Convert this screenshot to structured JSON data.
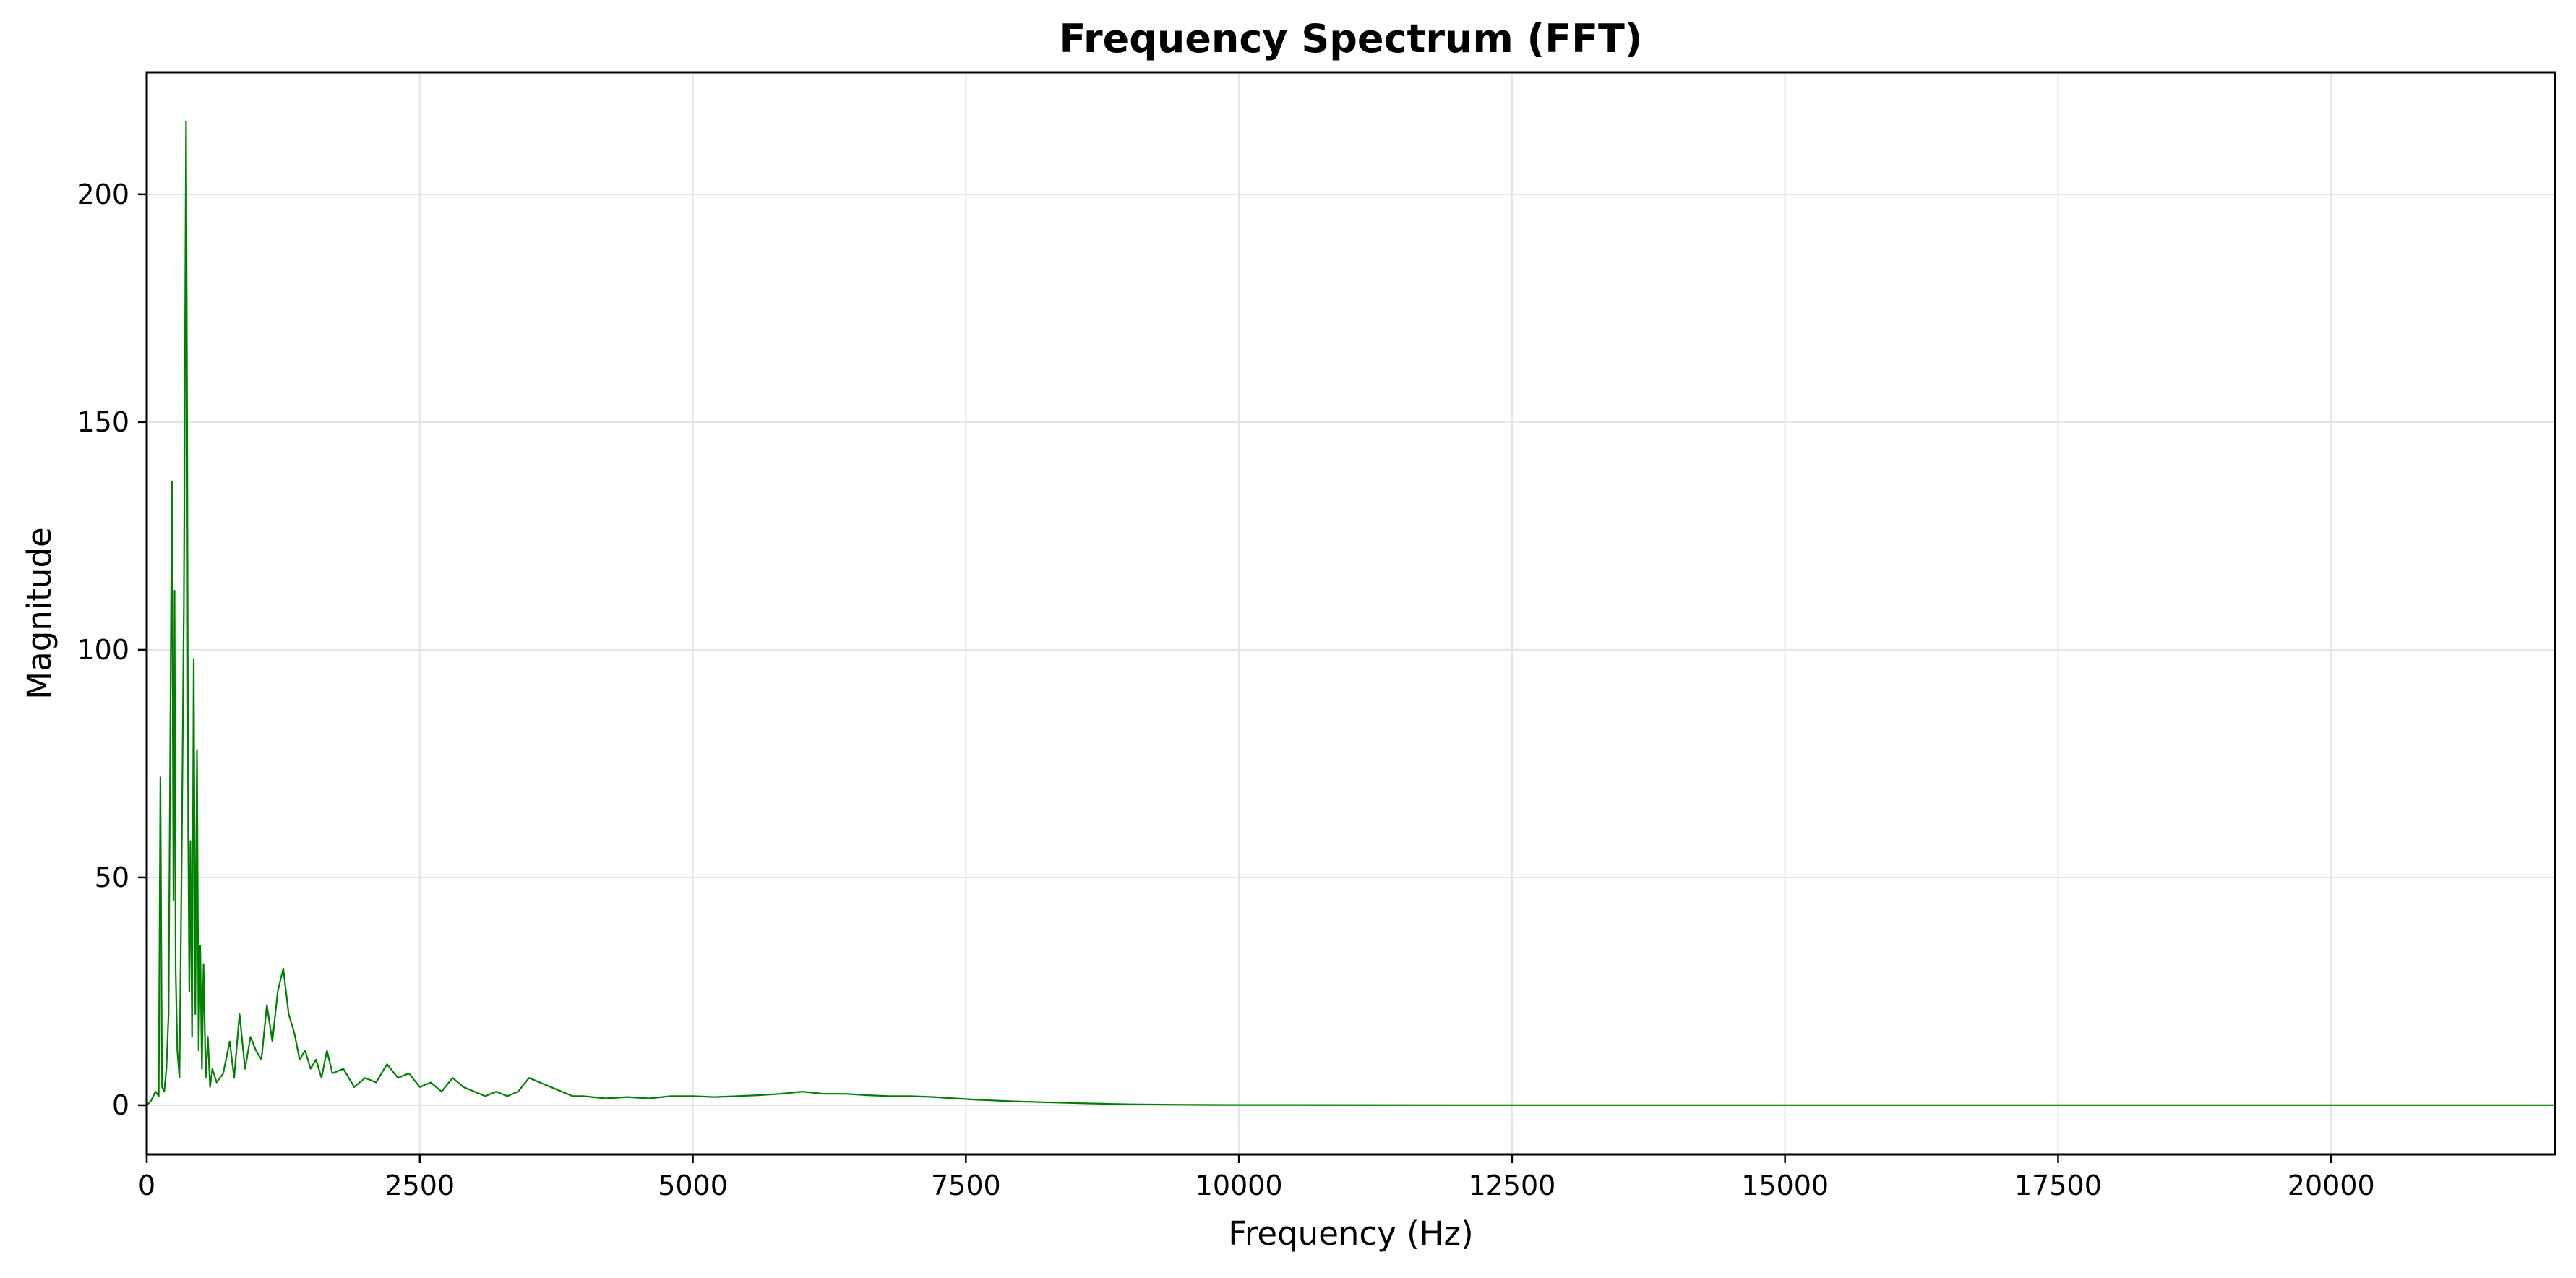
{
  "chart_data": {
    "type": "line",
    "title": "Frequency Spectrum (FFT)",
    "xlabel": "Frequency (Hz)",
    "ylabel": "Magnitude",
    "xlim": [
      0,
      22050
    ],
    "ylim": [
      -10.8,
      226.8
    ],
    "xticks": [
      0,
      2500,
      5000,
      7500,
      10000,
      12500,
      15000,
      17500,
      20000
    ],
    "xtick_labels": [
      "0",
      "2500",
      "5000",
      "7500",
      "10000",
      "12500",
      "15000",
      "17500",
      "20000"
    ],
    "yticks": [
      0,
      50,
      100,
      150,
      200
    ],
    "ytick_labels": [
      "0",
      "50",
      "100",
      "150",
      "200"
    ],
    "grid": true,
    "legend": "none",
    "series": [
      {
        "color": "#008000",
        "x": [
          0,
          40,
          80,
          110,
          125,
          140,
          160,
          180,
          200,
          230,
          245,
          255,
          265,
          280,
          300,
          320,
          340,
          360,
          370,
          380,
          390,
          400,
          415,
          430,
          445,
          460,
          475,
          490,
          505,
          520,
          540,
          560,
          580,
          600,
          640,
          700,
          760,
          800,
          850,
          900,
          950,
          1000,
          1050,
          1100,
          1150,
          1200,
          1250,
          1300,
          1350,
          1400,
          1450,
          1500,
          1550,
          1600,
          1650,
          1700,
          1800,
          1900,
          2000,
          2100,
          2200,
          2300,
          2400,
          2500,
          2600,
          2700,
          2800,
          2900,
          3000,
          3100,
          3200,
          3300,
          3400,
          3500,
          3600,
          3700,
          3800,
          3900,
          4000,
          4200,
          4400,
          4600,
          4800,
          5000,
          5200,
          5400,
          5600,
          5800,
          6000,
          6200,
          6400,
          6600,
          6800,
          7000,
          7200,
          7400,
          7600,
          7800,
          8000,
          8300,
          8600,
          9000,
          9500,
          10000,
          12000,
          15000,
          18000,
          22050
        ],
        "y": [
          0,
          1,
          3,
          2,
          72,
          4,
          3,
          8,
          20,
          137,
          45,
          113,
          30,
          12,
          6,
          55,
          110,
          216,
          150,
          60,
          25,
          58,
          15,
          98,
          20,
          78,
          12,
          35,
          8,
          31,
          6,
          15,
          4,
          8,
          5,
          7,
          14,
          6,
          20,
          8,
          15,
          12,
          10,
          22,
          14,
          25,
          30,
          20,
          16,
          10,
          12,
          8,
          10,
          6,
          12,
          7,
          8,
          4,
          6,
          5,
          9,
          6,
          7,
          4,
          5,
          3,
          6,
          4,
          3,
          2,
          3,
          2,
          3,
          6,
          5,
          4,
          3,
          2,
          2,
          1.5,
          1.8,
          1.5,
          2,
          2,
          1.8,
          2,
          2.2,
          2.5,
          3,
          2.5,
          2.5,
          2.2,
          2,
          2,
          1.8,
          1.5,
          1.2,
          1,
          0.8,
          0.6,
          0.4,
          0.2,
          0.1,
          0.05,
          0.03,
          0.02,
          0.02,
          0.02
        ]
      }
    ]
  }
}
